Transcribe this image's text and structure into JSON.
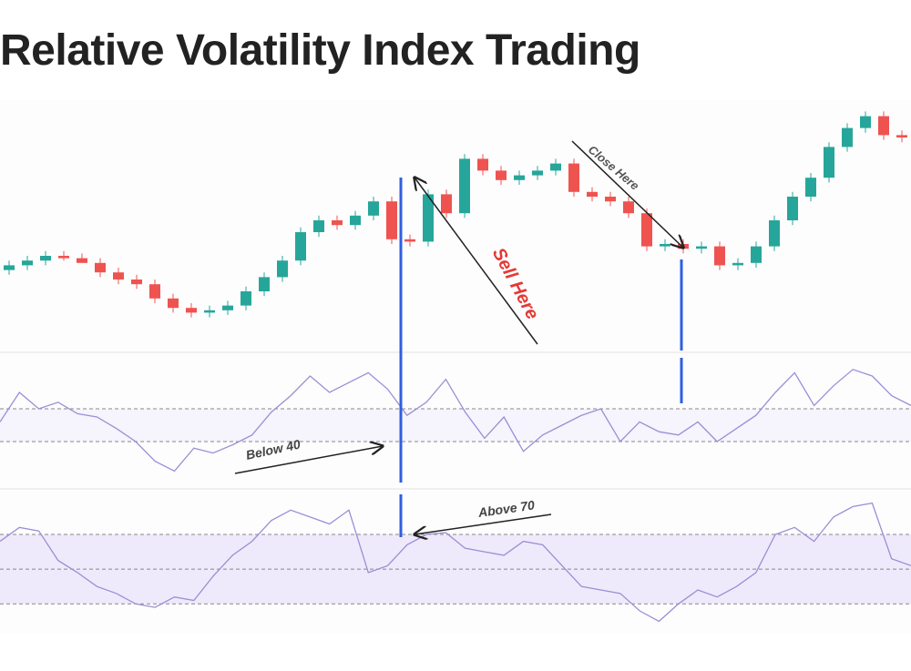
{
  "title": "Relative Volatility Index Trading",
  "chart_data": [
    {
      "type": "candlestick",
      "ylim": [
        0,
        105
      ],
      "up_color": "#26a69a",
      "down_color": "#ef5350",
      "open": [
        34,
        36,
        38,
        40,
        39,
        37,
        33,
        30,
        28,
        22,
        18,
        16,
        17,
        19,
        25,
        31,
        38,
        50,
        55,
        53,
        57,
        63,
        47,
        46,
        66,
        58,
        81,
        76,
        72,
        74,
        76,
        79,
        67,
        65,
        63,
        58,
        44,
        45,
        43,
        44,
        36,
        37,
        44,
        55,
        65,
        73,
        86,
        94,
        99,
        91
      ],
      "high": [
        38,
        40,
        42,
        42,
        41,
        39,
        35,
        32,
        30,
        24,
        20,
        19,
        21,
        27,
        33,
        40,
        52,
        57,
        57,
        59,
        65,
        65,
        49,
        68,
        68,
        83,
        83,
        78,
        76,
        78,
        81,
        81,
        69,
        67,
        65,
        60,
        47,
        47,
        46,
        46,
        39,
        46,
        57,
        67,
        75,
        88,
        96,
        101,
        101,
        93
      ],
      "low": [
        32,
        34,
        36,
        38,
        37,
        31,
        28,
        26,
        20,
        16,
        14,
        14,
        15,
        17,
        23,
        29,
        36,
        48,
        51,
        51,
        55,
        45,
        44,
        44,
        56,
        56,
        74,
        70,
        70,
        72,
        74,
        65,
        63,
        61,
        56,
        42,
        42,
        41,
        41,
        34,
        34,
        35,
        42,
        53,
        63,
        71,
        84,
        92,
        89,
        88
      ],
      "close": [
        36,
        38,
        40,
        39,
        37,
        33,
        30,
        28,
        22,
        18,
        16,
        17,
        19,
        25,
        31,
        38,
        50,
        55,
        53,
        57,
        63,
        47,
        46,
        66,
        58,
        81,
        76,
        72,
        74,
        76,
        79,
        67,
        65,
        63,
        58,
        44,
        45,
        43,
        44,
        36,
        37,
        44,
        55,
        65,
        73,
        86,
        94,
        99,
        91,
        90
      ],
      "annotations": [
        "Sell Here",
        "Close Here"
      ]
    },
    {
      "type": "line",
      "ylim": [
        10,
        90
      ],
      "color": "#9a8fd4",
      "levels": [
        40,
        60
      ],
      "band": [
        40,
        60
      ],
      "band_color": "#f6f4fc",
      "values": [
        52,
        70,
        60,
        64,
        57,
        55,
        48,
        40,
        28,
        22,
        36,
        33,
        38,
        44,
        58,
        68,
        80,
        70,
        76,
        82,
        72,
        56,
        64,
        78,
        58,
        42,
        55,
        34,
        44,
        50,
        56,
        60,
        40,
        52,
        46,
        44,
        52,
        40,
        48,
        56,
        70,
        82,
        62,
        74,
        84,
        80,
        68,
        62
      ],
      "annotations": [
        "Below 40"
      ]
    },
    {
      "type": "line",
      "ylim": [
        16,
        92
      ],
      "color": "#9a8fd4",
      "levels": [
        30,
        50,
        70
      ],
      "band": [
        30,
        70
      ],
      "band_color": "#efeafb",
      "values": [
        66,
        74,
        72,
        55,
        48,
        40,
        36,
        30,
        28,
        34,
        32,
        46,
        58,
        66,
        78,
        84,
        80,
        76,
        84,
        48,
        52,
        64,
        70,
        71,
        62,
        60,
        58,
        66,
        64,
        52,
        40,
        38,
        36,
        26,
        20,
        30,
        38,
        34,
        40,
        48,
        70,
        74,
        66,
        80,
        86,
        88,
        56,
        52
      ],
      "annotations": [
        "Above 70"
      ]
    }
  ]
}
